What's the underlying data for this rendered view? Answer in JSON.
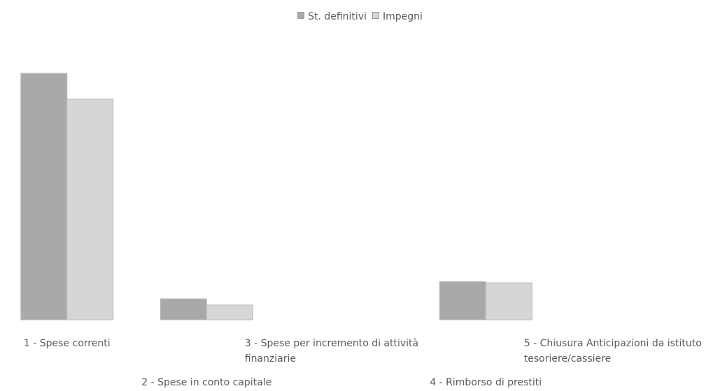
{
  "chart_data": {
    "type": "bar",
    "categories": [
      "1 - Spese correnti",
      "2 - Spese in conto capitale",
      "3 - Spese per incremento di attività finanziarie",
      "4 - Rimborso di prestiti",
      "5 - Chiusura Anticipazioni da istituto tesoriere/cassiere"
    ],
    "series": [
      {
        "name": "St. definitivi",
        "color": "#a9a9a9",
        "values": [
          100,
          8.5,
          0,
          15.5,
          0
        ]
      },
      {
        "name": "Impegni",
        "color": "#d6d6d6",
        "values": [
          89.5,
          6,
          0,
          15,
          0
        ]
      }
    ],
    "ylim": [
      0,
      100
    ],
    "legend": "top"
  }
}
